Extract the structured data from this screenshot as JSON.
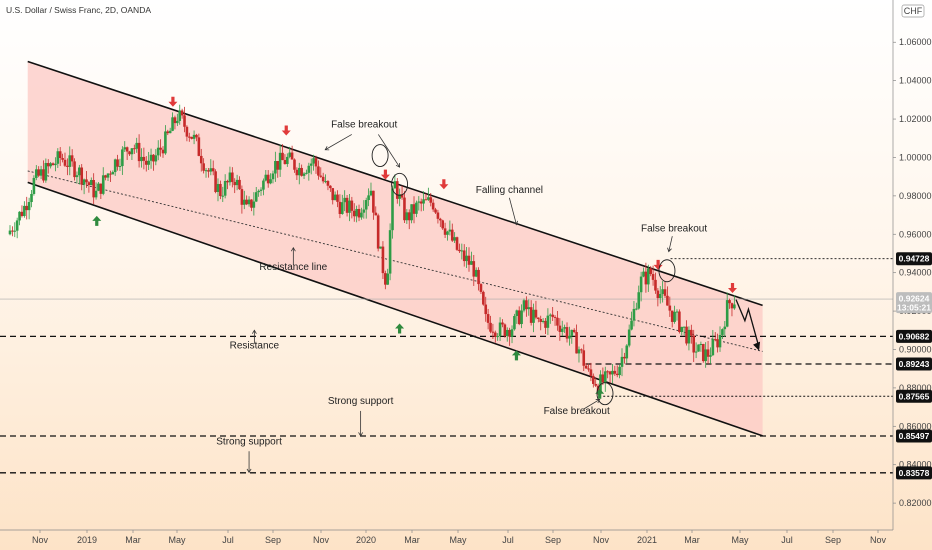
{
  "header": {
    "symbol_title": "U.S. Dollar / Swiss Franc, 2D, OANDA",
    "currency": "CHF"
  },
  "colors": {
    "background_top": "#ffffff",
    "background_bottom": "#fde3c7",
    "channel_fill": "#fcc9c4",
    "bull_candle": "#2e9c46",
    "bear_candle": "#c62a2a",
    "down_arrow": "#e03a3a",
    "up_arrow": "#2f8a3e",
    "badge": "#111111",
    "price_badge": "#bdbdbd"
  },
  "chart_data": {
    "type": "candlestick",
    "title": "U.S. Dollar / Swiss Franc, 2D, OANDA",
    "xlabel": "",
    "ylabel": "",
    "ylim": [
      0.806,
      1.082
    ],
    "x_ticks": [
      "Nov",
      "2019",
      "Mar",
      "May",
      "Jul",
      "Sep",
      "Nov",
      "2020",
      "Mar",
      "May",
      "Jul",
      "Sep",
      "Nov",
      "2021",
      "Mar",
      "May",
      "Jul",
      "Sep",
      "Nov"
    ],
    "y_ticks": [
      "1.06000",
      "1.04000",
      "1.02000",
      "1.00000",
      "0.98000",
      "0.96000",
      "0.94000",
      "0.92000",
      "0.90000",
      "0.88000",
      "0.86000",
      "0.84000",
      "0.82000"
    ],
    "price_path": [
      {
        "x": 0,
        "y": 0.96
      },
      {
        "x": 1,
        "y": 0.975
      },
      {
        "x": 1.5,
        "y": 0.988
      },
      {
        "x": 3,
        "y": 1.0
      },
      {
        "x": 4,
        "y": 0.993
      },
      {
        "x": 5,
        "y": 0.981
      },
      {
        "x": 6,
        "y": 0.997
      },
      {
        "x": 7,
        "y": 1.007
      },
      {
        "x": 8,
        "y": 0.995
      },
      {
        "x": 9,
        "y": 1.01
      },
      {
        "x": 9.6,
        "y": 1.022
      },
      {
        "x": 10.5,
        "y": 1.01
      },
      {
        "x": 11.2,
        "y": 0.995
      },
      {
        "x": 12,
        "y": 0.982
      },
      {
        "x": 12.8,
        "y": 0.99
      },
      {
        "x": 13.5,
        "y": 0.972
      },
      {
        "x": 14.3,
        "y": 0.985
      },
      {
        "x": 15,
        "y": 0.996
      },
      {
        "x": 15.8,
        "y": 0.999
      },
      {
        "x": 16.5,
        "y": 0.994
      },
      {
        "x": 17.3,
        "y": 0.998
      },
      {
        "x": 18,
        "y": 0.984
      },
      {
        "x": 18.8,
        "y": 0.975
      },
      {
        "x": 19.8,
        "y": 0.972
      },
      {
        "x": 20.5,
        "y": 0.985
      },
      {
        "x": 21.1,
        "y": 0.946
      },
      {
        "x": 21.4,
        "y": 0.935
      },
      {
        "x": 21.8,
        "y": 0.988
      },
      {
        "x": 22.5,
        "y": 0.968
      },
      {
        "x": 23.2,
        "y": 0.975
      },
      {
        "x": 24,
        "y": 0.977
      },
      {
        "x": 24.8,
        "y": 0.962
      },
      {
        "x": 25.5,
        "y": 0.95
      },
      {
        "x": 26.3,
        "y": 0.943
      },
      {
        "x": 27,
        "y": 0.915
      },
      {
        "x": 27.8,
        "y": 0.91
      },
      {
        "x": 28.5,
        "y": 0.912
      },
      {
        "x": 29.2,
        "y": 0.922
      },
      {
        "x": 30,
        "y": 0.913
      },
      {
        "x": 30.8,
        "y": 0.917
      },
      {
        "x": 31.5,
        "y": 0.91
      },
      {
        "x": 32.2,
        "y": 0.902
      },
      {
        "x": 32.8,
        "y": 0.887
      },
      {
        "x": 33.4,
        "y": 0.882
      },
      {
        "x": 34,
        "y": 0.885
      },
      {
        "x": 34.6,
        "y": 0.893
      },
      {
        "x": 35.2,
        "y": 0.912
      },
      {
        "x": 35.7,
        "y": 0.935
      },
      {
        "x": 36.3,
        "y": 0.94
      },
      {
        "x": 36.8,
        "y": 0.93
      },
      {
        "x": 37.5,
        "y": 0.919
      },
      {
        "x": 38.2,
        "y": 0.91
      },
      {
        "x": 38.8,
        "y": 0.9
      },
      {
        "x": 39.5,
        "y": 0.897
      },
      {
        "x": 40.2,
        "y": 0.906
      },
      {
        "x": 40.7,
        "y": 0.924
      },
      {
        "x": 41,
        "y": 0.926
      }
    ],
    "x_domain": [
      0,
      48
    ],
    "channel": {
      "upper": [
        {
          "x": 1,
          "y": 1.05
        },
        {
          "x": 42.5,
          "y": 0.923
        }
      ],
      "lower": [
        {
          "x": 1,
          "y": 0.987
        },
        {
          "x": 42.5,
          "y": 0.855
        }
      ],
      "midline": [
        {
          "x": 1,
          "y": 0.993
        },
        {
          "x": 42.5,
          "y": 0.899
        }
      ]
    },
    "horizontal_lines": [
      {
        "value": 0.94728,
        "label": "0.94728",
        "style": "dotted",
        "from_x": 37.3
      },
      {
        "value": 0.90682,
        "label": "0.90682",
        "style": "dashed",
        "from_x": 0
      },
      {
        "value": 0.89243,
        "label": "0.89243",
        "style": "dashed",
        "from_x": 32.5
      },
      {
        "value": 0.87565,
        "label": "0.87565",
        "style": "dotted",
        "from_x": 33.5
      },
      {
        "value": 0.85497,
        "label": "0.85497",
        "style": "dashed",
        "from_x": 0
      },
      {
        "value": 0.83578,
        "label": "0.83578",
        "style": "dashed",
        "from_x": 0
      }
    ],
    "current_price": {
      "value": 0.92624,
      "label": "0.92624",
      "countdown": "13:05:21"
    },
    "annotations": [
      {
        "text": "False breakout",
        "x": 20.0,
        "y": 1.0155
      },
      {
        "text": "Falling channel",
        "x": 28.2,
        "y": 0.9815
      },
      {
        "text": "False breakout",
        "x": 37.5,
        "y": 0.9615
      },
      {
        "text": "Resistance line",
        "x": 16.0,
        "y": 0.9415
      },
      {
        "text": "Resistance",
        "x": 13.8,
        "y": 0.9005
      },
      {
        "text": "Strong support",
        "x": 19.8,
        "y": 0.8715
      },
      {
        "text": "False breakout",
        "x": 32.0,
        "y": 0.8665
      },
      {
        "text": "Strong support",
        "x": 13.5,
        "y": 0.8505
      }
    ],
    "down_arrows": [
      {
        "x": 9.2,
        "y": 1.028
      },
      {
        "x": 15.6,
        "y": 1.013
      },
      {
        "x": 21.2,
        "y": 0.99
      },
      {
        "x": 24.5,
        "y": 0.985
      },
      {
        "x": 36.6,
        "y": 0.943
      },
      {
        "x": 40.8,
        "y": 0.931
      }
    ],
    "up_arrows": [
      {
        "x": 4.9,
        "y": 0.968
      },
      {
        "x": 22.0,
        "y": 0.912
      },
      {
        "x": 28.6,
        "y": 0.898
      },
      {
        "x": 33.3,
        "y": 0.878
      }
    ]
  }
}
